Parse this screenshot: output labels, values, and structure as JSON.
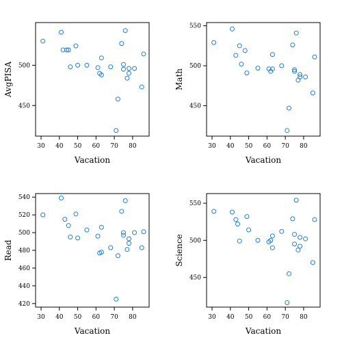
{
  "figure": {
    "point_color": "#1e7fd8"
  },
  "chart_data": [
    {
      "type": "scatter",
      "title": "",
      "xlabel": "Vacation",
      "ylabel": "AvgPISA",
      "xlim": [
        27,
        89
      ],
      "ylim": [
        412,
        553
      ],
      "xticks": [
        30,
        40,
        50,
        60,
        70,
        80
      ],
      "yticks": [
        450,
        500
      ],
      "x": [
        31,
        41,
        42,
        44,
        45,
        46,
        49,
        50,
        55,
        61,
        62,
        63,
        63,
        68,
        71,
        72,
        74,
        75,
        75,
        76,
        77,
        78,
        78,
        81,
        85,
        86
      ],
      "y": [
        530,
        541,
        519,
        519,
        519,
        498,
        524,
        500,
        500,
        497,
        490,
        509,
        488,
        498,
        419,
        458,
        527,
        495,
        501,
        543,
        484,
        496,
        490,
        496,
        473,
        514
      ]
    },
    {
      "type": "scatter",
      "title": "",
      "xlabel": "Vacation",
      "ylabel": "Math",
      "xlim": [
        27,
        89
      ],
      "ylim": [
        412,
        554
      ],
      "xticks": [
        30,
        40,
        50,
        60,
        70,
        80
      ],
      "yticks": [
        450,
        500,
        550
      ],
      "x": [
        31,
        41,
        43,
        45,
        46,
        48,
        49,
        55,
        61,
        62,
        63,
        63,
        68,
        71,
        72,
        74,
        75,
        75,
        76,
        77,
        78,
        78,
        81,
        85,
        86
      ],
      "y": [
        529,
        546,
        513,
        525,
        502,
        519,
        491,
        497,
        496,
        493,
        496,
        514,
        500,
        419,
        447,
        526,
        493,
        495,
        541,
        482,
        486,
        489,
        486,
        466,
        511
      ]
    },
    {
      "type": "scatter",
      "title": "",
      "xlabel": "Vacation",
      "ylabel": "Read",
      "xlim": [
        27,
        89
      ],
      "ylim": [
        416,
        544
      ],
      "xticks": [
        30,
        40,
        50,
        60,
        70,
        80
      ],
      "yticks": [
        420,
        440,
        460,
        480,
        500,
        520,
        540
      ],
      "x": [
        31,
        41,
        43,
        45,
        46,
        49,
        50,
        55,
        61,
        62,
        63,
        63,
        68,
        71,
        72,
        74,
        75,
        75,
        76,
        77,
        78,
        78,
        81,
        85,
        86
      ],
      "y": [
        520,
        539,
        515,
        508,
        495,
        521,
        494,
        503,
        496,
        477,
        478,
        506,
        483,
        425,
        474,
        524,
        497,
        500,
        536,
        481,
        493,
        488,
        500,
        483,
        501
      ]
    },
    {
      "type": "scatter",
      "title": "",
      "xlabel": "Vacation",
      "ylabel": "Science",
      "xlim": [
        27,
        89
      ],
      "ylim": [
        410,
        563
      ],
      "xticks": [
        30,
        40,
        50,
        60,
        70,
        80
      ],
      "yticks": [
        450,
        500,
        550
      ],
      "x": [
        31,
        41,
        43,
        44,
        45,
        49,
        50,
        55,
        61,
        62,
        63,
        63,
        68,
        71,
        72,
        74,
        75,
        75,
        76,
        77,
        78,
        78,
        81,
        85,
        86
      ],
      "y": [
        539,
        538,
        528,
        522,
        499,
        532,
        514,
        500,
        498,
        500,
        490,
        506,
        512,
        416,
        455,
        529,
        495,
        508,
        554,
        487,
        504,
        492,
        502,
        470,
        528
      ]
    }
  ]
}
